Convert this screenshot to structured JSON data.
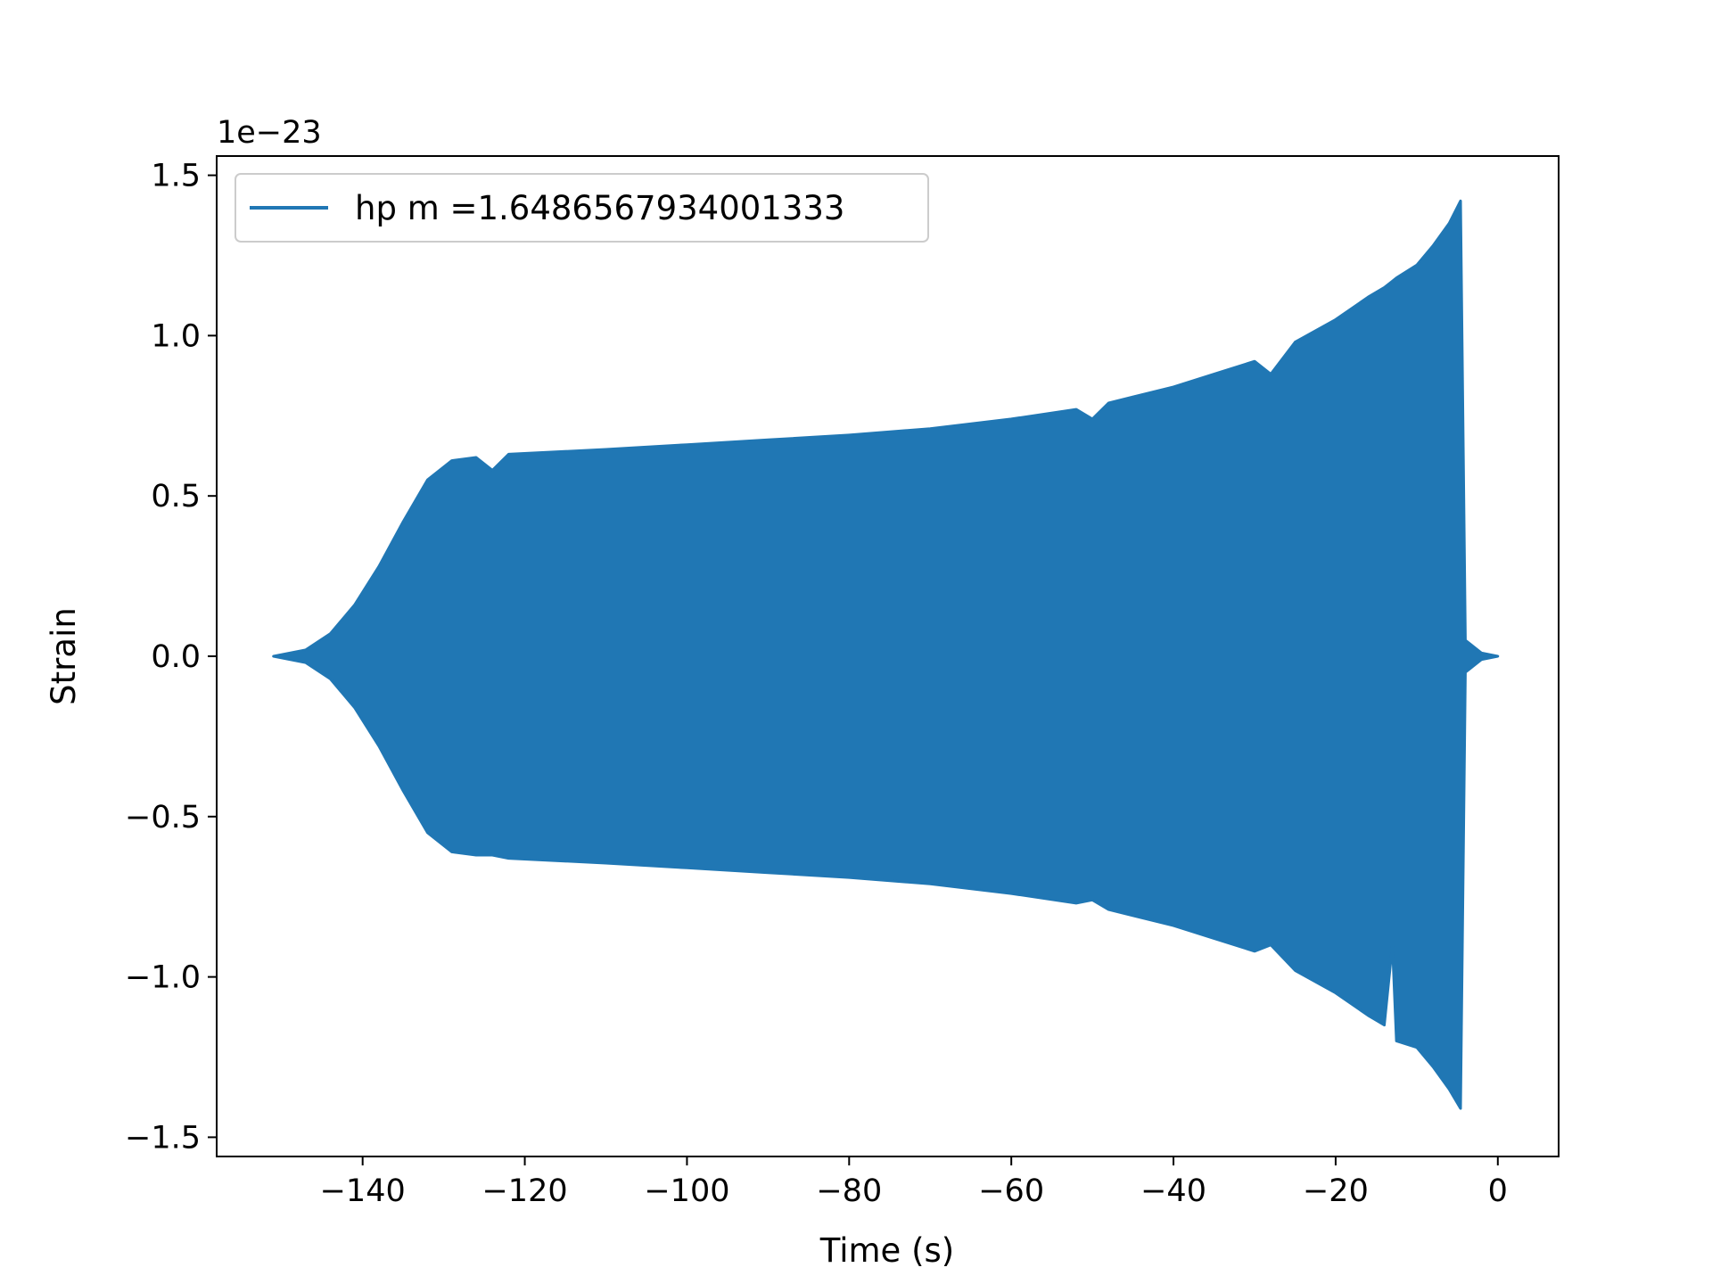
{
  "chart_data": {
    "type": "area",
    "xlabel": "Time (s)",
    "ylabel": "Strain",
    "y_offset_text": "1e−23",
    "y_scale_factor": 1e-23,
    "xlim": [
      -158,
      7.5
    ],
    "ylim": [
      -1.56,
      1.56
    ],
    "grid": false,
    "legend_position": "top-left",
    "x_ticks": [
      {
        "value": -140,
        "label": "−140"
      },
      {
        "value": -120,
        "label": "−120"
      },
      {
        "value": -100,
        "label": "−100"
      },
      {
        "value": -80,
        "label": "−80"
      },
      {
        "value": -60,
        "label": "−60"
      },
      {
        "value": -40,
        "label": "−40"
      },
      {
        "value": -20,
        "label": "−20"
      },
      {
        "value": 0,
        "label": "0"
      }
    ],
    "y_ticks": [
      {
        "value": 1.5,
        "label": "1.5"
      },
      {
        "value": 1.0,
        "label": "1.0"
      },
      {
        "value": 0.5,
        "label": "0.5"
      },
      {
        "value": 0.0,
        "label": "0.0"
      },
      {
        "value": -0.5,
        "label": "−0.5"
      },
      {
        "value": -1.0,
        "label": "−1.0"
      },
      {
        "value": -1.5,
        "label": "−1.5"
      }
    ],
    "series": [
      {
        "name": "hp m =1.6486567934001333",
        "color": "#2077b4",
        "envelope": [
          {
            "t": -151,
            "upper": 0.0,
            "lower": -0.0
          },
          {
            "t": -147,
            "upper": 0.02,
            "lower": -0.02
          },
          {
            "t": -144,
            "upper": 0.07,
            "lower": -0.07
          },
          {
            "t": -141,
            "upper": 0.16,
            "lower": -0.16
          },
          {
            "t": -138,
            "upper": 0.28,
            "lower": -0.28
          },
          {
            "t": -135,
            "upper": 0.42,
            "lower": -0.42
          },
          {
            "t": -132,
            "upper": 0.55,
            "lower": -0.55
          },
          {
            "t": -129,
            "upper": 0.61,
            "lower": -0.61
          },
          {
            "t": -126,
            "upper": 0.62,
            "lower": -0.62
          },
          {
            "t": -124,
            "upper": 0.58,
            "lower": -0.62
          },
          {
            "t": -122,
            "upper": 0.63,
            "lower": -0.63
          },
          {
            "t": -110,
            "upper": 0.645,
            "lower": -0.645
          },
          {
            "t": -100,
            "upper": 0.66,
            "lower": -0.66
          },
          {
            "t": -90,
            "upper": 0.675,
            "lower": -0.675
          },
          {
            "t": -80,
            "upper": 0.69,
            "lower": -0.69
          },
          {
            "t": -70,
            "upper": 0.71,
            "lower": -0.71
          },
          {
            "t": -60,
            "upper": 0.74,
            "lower": -0.74
          },
          {
            "t": -52,
            "upper": 0.77,
            "lower": -0.77
          },
          {
            "t": -50,
            "upper": 0.74,
            "lower": -0.76
          },
          {
            "t": -48,
            "upper": 0.79,
            "lower": -0.79
          },
          {
            "t": -40,
            "upper": 0.84,
            "lower": -0.84
          },
          {
            "t": -35,
            "upper": 0.88,
            "lower": -0.88
          },
          {
            "t": -30,
            "upper": 0.92,
            "lower": -0.92
          },
          {
            "t": -28,
            "upper": 0.88,
            "lower": -0.9
          },
          {
            "t": -25,
            "upper": 0.98,
            "lower": -0.98
          },
          {
            "t": -20,
            "upper": 1.05,
            "lower": -1.05
          },
          {
            "t": -16,
            "upper": 1.12,
            "lower": -1.12
          },
          {
            "t": -14,
            "upper": 1.15,
            "lower": -1.15
          },
          {
            "t": -13,
            "upper": 1.17,
            "lower": -0.9
          },
          {
            "t": -12.5,
            "upper": 1.18,
            "lower": -1.2
          },
          {
            "t": -10,
            "upper": 1.22,
            "lower": -1.22
          },
          {
            "t": -8,
            "upper": 1.28,
            "lower": -1.28
          },
          {
            "t": -6,
            "upper": 1.35,
            "lower": -1.35
          },
          {
            "t": -4.6,
            "upper": 1.42,
            "lower": -1.41
          },
          {
            "t": -4.0,
            "upper": 0.05,
            "lower": -0.05
          },
          {
            "t": -2,
            "upper": 0.01,
            "lower": -0.01
          },
          {
            "t": 0,
            "upper": 0.0,
            "lower": 0.0
          }
        ]
      }
    ]
  }
}
